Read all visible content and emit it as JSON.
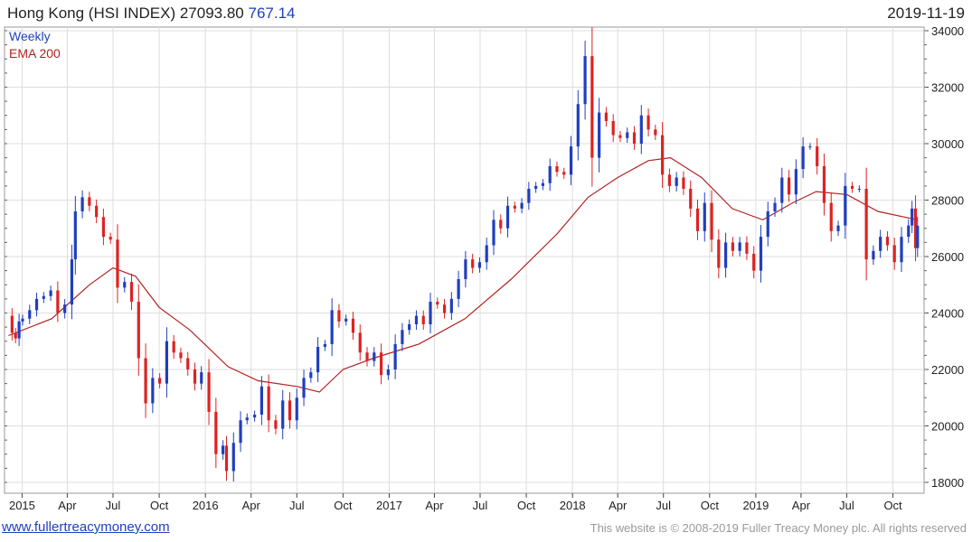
{
  "header": {
    "title": "Hong Kong (HSI INDEX) 27093.80",
    "change": "767.14",
    "date": "2019-11-19"
  },
  "footer": {
    "link": "www.fullertreacymoney.com",
    "copyright": "This website is © 2008-2019 Fuller Treacy Money plc. All rights reserved"
  },
  "chart_data": {
    "type": "candlestick",
    "legend": [
      "Weekly",
      "EMA 200"
    ],
    "legend_position": "top-left",
    "grid": true,
    "up_color": "#1f3fbf",
    "down_color": "#dd2222",
    "ema_color": "#b22222",
    "ylim": [
      18000,
      34000
    ],
    "yticks": [
      18000,
      20000,
      22000,
      24000,
      26000,
      28000,
      30000,
      32000,
      34000
    ],
    "xticks": [
      "2015",
      "Apr",
      "Jul",
      "Oct",
      "2016",
      "Apr",
      "Jul",
      "Oct",
      "2017",
      "Apr",
      "Jul",
      "Oct",
      "2018",
      "Apr",
      "Jul",
      "Oct",
      "2019",
      "Apr",
      "Jul",
      "Oct"
    ],
    "xtick_dates": [
      "2015-01-01",
      "2015-04-01",
      "2015-07-01",
      "2015-10-01",
      "2016-01-01",
      "2016-04-01",
      "2016-07-01",
      "2016-10-01",
      "2017-01-01",
      "2017-04-01",
      "2017-07-01",
      "2017-10-01",
      "2018-01-01",
      "2018-04-01",
      "2018-07-01",
      "2018-10-01",
      "2019-01-01",
      "2019-04-01",
      "2019-07-01",
      "2019-10-01"
    ],
    "weekly_close": [
      {
        "date": "2014-12-05",
        "value": 23900
      },
      {
        "date": "2014-12-12",
        "value": 23300
      },
      {
        "date": "2014-12-19",
        "value": 23100
      },
      {
        "date": "2014-12-26",
        "value": 23700
      },
      {
        "date": "2015-01-02",
        "value": 23800
      },
      {
        "date": "2015-01-16",
        "value": 24100
      },
      {
        "date": "2015-01-30",
        "value": 24500
      },
      {
        "date": "2015-02-13",
        "value": 24600
      },
      {
        "date": "2015-02-27",
        "value": 24800
      },
      {
        "date": "2015-03-13",
        "value": 24000
      },
      {
        "date": "2015-03-27",
        "value": 24300
      },
      {
        "date": "2015-04-10",
        "value": 25900
      },
      {
        "date": "2015-04-17",
        "value": 27600
      },
      {
        "date": "2015-05-01",
        "value": 28100
      },
      {
        "date": "2015-05-15",
        "value": 27800
      },
      {
        "date": "2015-05-29",
        "value": 27400
      },
      {
        "date": "2015-06-12",
        "value": 26700
      },
      {
        "date": "2015-06-26",
        "value": 26600
      },
      {
        "date": "2015-07-10",
        "value": 24900
      },
      {
        "date": "2015-07-24",
        "value": 25100
      },
      {
        "date": "2015-08-07",
        "value": 24400
      },
      {
        "date": "2015-08-21",
        "value": 22400
      },
      {
        "date": "2015-09-04",
        "value": 20800
      },
      {
        "date": "2015-09-18",
        "value": 21700
      },
      {
        "date": "2015-10-02",
        "value": 21500
      },
      {
        "date": "2015-10-16",
        "value": 23000
      },
      {
        "date": "2015-10-30",
        "value": 22600
      },
      {
        "date": "2015-11-13",
        "value": 22400
      },
      {
        "date": "2015-11-27",
        "value": 22000
      },
      {
        "date": "2015-12-11",
        "value": 21500
      },
      {
        "date": "2015-12-24",
        "value": 21900
      },
      {
        "date": "2016-01-08",
        "value": 20500
      },
      {
        "date": "2016-01-22",
        "value": 19000
      },
      {
        "date": "2016-02-05",
        "value": 19300
      },
      {
        "date": "2016-02-12",
        "value": 18400
      },
      {
        "date": "2016-02-26",
        "value": 19400
      },
      {
        "date": "2016-03-11",
        "value": 20200
      },
      {
        "date": "2016-03-24",
        "value": 20300
      },
      {
        "date": "2016-04-08",
        "value": 20400
      },
      {
        "date": "2016-04-22",
        "value": 21400
      },
      {
        "date": "2016-05-06",
        "value": 20200
      },
      {
        "date": "2016-05-20",
        "value": 19900
      },
      {
        "date": "2016-06-03",
        "value": 20900
      },
      {
        "date": "2016-06-17",
        "value": 20200
      },
      {
        "date": "2016-07-01",
        "value": 21000
      },
      {
        "date": "2016-07-15",
        "value": 21700
      },
      {
        "date": "2016-07-29",
        "value": 21900
      },
      {
        "date": "2016-08-12",
        "value": 22800
      },
      {
        "date": "2016-08-26",
        "value": 22900
      },
      {
        "date": "2016-09-09",
        "value": 24100
      },
      {
        "date": "2016-09-23",
        "value": 23700
      },
      {
        "date": "2016-10-07",
        "value": 23800
      },
      {
        "date": "2016-10-21",
        "value": 23300
      },
      {
        "date": "2016-11-04",
        "value": 22600
      },
      {
        "date": "2016-11-18",
        "value": 22300
      },
      {
        "date": "2016-12-02",
        "value": 22600
      },
      {
        "date": "2016-12-16",
        "value": 21800
      },
      {
        "date": "2016-12-30",
        "value": 22000
      },
      {
        "date": "2017-01-13",
        "value": 22900
      },
      {
        "date": "2017-01-27",
        "value": 23400
      },
      {
        "date": "2017-02-10",
        "value": 23600
      },
      {
        "date": "2017-02-24",
        "value": 23900
      },
      {
        "date": "2017-03-10",
        "value": 23600
      },
      {
        "date": "2017-03-24",
        "value": 24400
      },
      {
        "date": "2017-04-07",
        "value": 24300
      },
      {
        "date": "2017-04-21",
        "value": 24000
      },
      {
        "date": "2017-05-05",
        "value": 24500
      },
      {
        "date": "2017-05-19",
        "value": 25200
      },
      {
        "date": "2017-06-02",
        "value": 25900
      },
      {
        "date": "2017-06-16",
        "value": 25600
      },
      {
        "date": "2017-06-30",
        "value": 25800
      },
      {
        "date": "2017-07-14",
        "value": 26400
      },
      {
        "date": "2017-07-28",
        "value": 27300
      },
      {
        "date": "2017-08-11",
        "value": 27000
      },
      {
        "date": "2017-08-25",
        "value": 27800
      },
      {
        "date": "2017-09-08",
        "value": 27700
      },
      {
        "date": "2017-09-22",
        "value": 27900
      },
      {
        "date": "2017-10-06",
        "value": 28400
      },
      {
        "date": "2017-10-20",
        "value": 28500
      },
      {
        "date": "2017-11-03",
        "value": 28600
      },
      {
        "date": "2017-11-17",
        "value": 29200
      },
      {
        "date": "2017-12-01",
        "value": 29000
      },
      {
        "date": "2017-12-15",
        "value": 28900
      },
      {
        "date": "2017-12-29",
        "value": 29900
      },
      {
        "date": "2018-01-12",
        "value": 31400
      },
      {
        "date": "2018-01-26",
        "value": 33100
      },
      {
        "date": "2018-02-09",
        "value": 29500
      },
      {
        "date": "2018-02-23",
        "value": 31100
      },
      {
        "date": "2018-03-09",
        "value": 30800
      },
      {
        "date": "2018-03-23",
        "value": 30300
      },
      {
        "date": "2018-04-06",
        "value": 30200
      },
      {
        "date": "2018-04-20",
        "value": 30400
      },
      {
        "date": "2018-05-04",
        "value": 30000
      },
      {
        "date": "2018-05-18",
        "value": 31000
      },
      {
        "date": "2018-06-01",
        "value": 30500
      },
      {
        "date": "2018-06-15",
        "value": 30300
      },
      {
        "date": "2018-06-29",
        "value": 28900
      },
      {
        "date": "2018-07-13",
        "value": 28500
      },
      {
        "date": "2018-07-27",
        "value": 28800
      },
      {
        "date": "2018-08-10",
        "value": 28400
      },
      {
        "date": "2018-08-24",
        "value": 27700
      },
      {
        "date": "2018-09-07",
        "value": 26900
      },
      {
        "date": "2018-09-21",
        "value": 27900
      },
      {
        "date": "2018-10-05",
        "value": 26600
      },
      {
        "date": "2018-10-19",
        "value": 25600
      },
      {
        "date": "2018-11-02",
        "value": 26500
      },
      {
        "date": "2018-11-16",
        "value": 26200
      },
      {
        "date": "2018-11-30",
        "value": 26500
      },
      {
        "date": "2018-12-14",
        "value": 26100
      },
      {
        "date": "2018-12-28",
        "value": 25500
      },
      {
        "date": "2019-01-11",
        "value": 26700
      },
      {
        "date": "2019-01-25",
        "value": 27600
      },
      {
        "date": "2019-02-08",
        "value": 27900
      },
      {
        "date": "2019-02-22",
        "value": 28800
      },
      {
        "date": "2019-03-08",
        "value": 28200
      },
      {
        "date": "2019-03-22",
        "value": 29100
      },
      {
        "date": "2019-04-05",
        "value": 29900
      },
      {
        "date": "2019-04-19",
        "value": 29900
      },
      {
        "date": "2019-05-03",
        "value": 29200
      },
      {
        "date": "2019-05-17",
        "value": 27900
      },
      {
        "date": "2019-05-31",
        "value": 26900
      },
      {
        "date": "2019-06-14",
        "value": 27100
      },
      {
        "date": "2019-06-28",
        "value": 28500
      },
      {
        "date": "2019-07-12",
        "value": 28400
      },
      {
        "date": "2019-07-26",
        "value": 28400
      },
      {
        "date": "2019-08-09",
        "value": 25900
      },
      {
        "date": "2019-08-23",
        "value": 26200
      },
      {
        "date": "2019-09-06",
        "value": 26700
      },
      {
        "date": "2019-09-20",
        "value": 26400
      },
      {
        "date": "2019-10-04",
        "value": 25800
      },
      {
        "date": "2019-10-18",
        "value": 26700
      },
      {
        "date": "2019-11-01",
        "value": 27100
      },
      {
        "date": "2019-11-08",
        "value": 27700
      },
      {
        "date": "2019-11-15",
        "value": 26300
      },
      {
        "date": "2019-11-19",
        "value": 27093.8
      }
    ],
    "ema200": [
      {
        "date": "2014-12-05",
        "value": 23200
      },
      {
        "date": "2015-03-01",
        "value": 23800
      },
      {
        "date": "2015-05-15",
        "value": 25000
      },
      {
        "date": "2015-07-01",
        "value": 25600
      },
      {
        "date": "2015-08-15",
        "value": 25300
      },
      {
        "date": "2015-10-01",
        "value": 24200
      },
      {
        "date": "2015-12-01",
        "value": 23400
      },
      {
        "date": "2016-02-15",
        "value": 22100
      },
      {
        "date": "2016-04-15",
        "value": 21600
      },
      {
        "date": "2016-07-01",
        "value": 21400
      },
      {
        "date": "2016-08-15",
        "value": 21200
      },
      {
        "date": "2016-10-01",
        "value": 22000
      },
      {
        "date": "2016-12-01",
        "value": 22400
      },
      {
        "date": "2017-03-01",
        "value": 22900
      },
      {
        "date": "2017-06-01",
        "value": 23800
      },
      {
        "date": "2017-09-01",
        "value": 25200
      },
      {
        "date": "2017-12-01",
        "value": 26800
      },
      {
        "date": "2018-02-01",
        "value": 28100
      },
      {
        "date": "2018-04-01",
        "value": 28800
      },
      {
        "date": "2018-06-01",
        "value": 29400
      },
      {
        "date": "2018-07-15",
        "value": 29500
      },
      {
        "date": "2018-09-15",
        "value": 28800
      },
      {
        "date": "2018-11-15",
        "value": 27700
      },
      {
        "date": "2019-01-15",
        "value": 27300
      },
      {
        "date": "2019-03-15",
        "value": 27900
      },
      {
        "date": "2019-05-01",
        "value": 28300
      },
      {
        "date": "2019-07-01",
        "value": 28200
      },
      {
        "date": "2019-09-01",
        "value": 27600
      },
      {
        "date": "2019-11-19",
        "value": 27300
      }
    ]
  }
}
